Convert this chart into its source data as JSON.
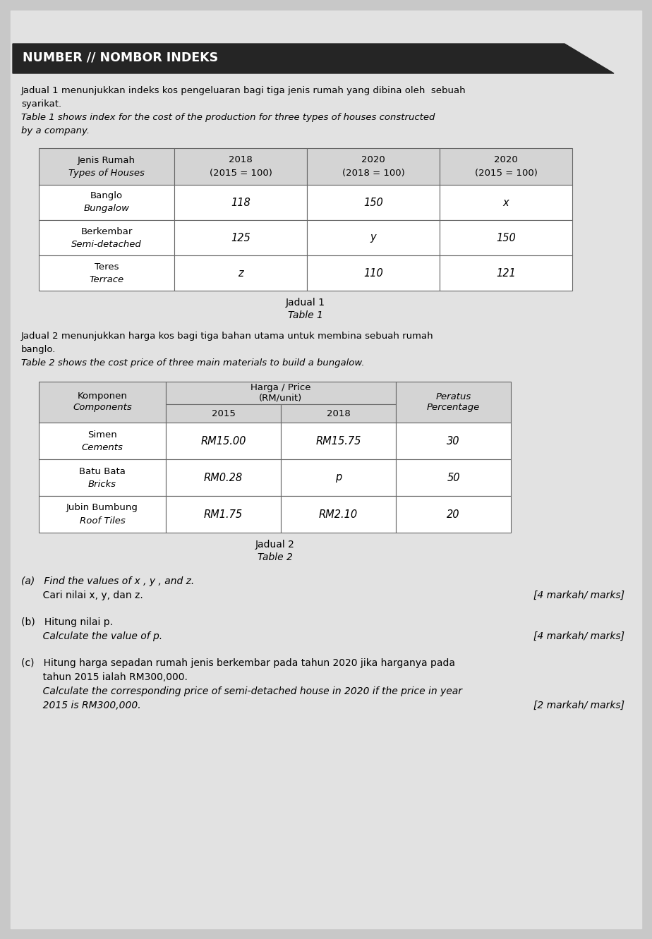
{
  "header_text": "NUMBER // NOMBOR INDEKS",
  "page_bg": "#c8c8c8",
  "content_bg": "#e2e2e2",
  "table_bg": "#d8d8d8",
  "para1_line1": "Jadual 1 menunjukkan indeks kos pengeluaran bagi tiga jenis rumah yang dibina oleh  sebuah",
  "para1_line2": "syarikat.",
  "para1_line3": "Table 1 shows index for the cost of the production for three types of houses constructed",
  "para1_line4": "by a company.",
  "table1_col0_line1": "Jenis Rumah",
  "table1_col0_line2": "Types of Houses",
  "table1_col1_line1": "2018",
  "table1_col1_line2": "(2015 = 100)",
  "table1_col2_line1": "2020",
  "table1_col2_line2": "(2018 = 100)",
  "table1_col3_line1": "2020",
  "table1_col3_line2": "(2015 = 100)",
  "table1_r1c0l1": "Banglo",
  "table1_r1c0l2": "Bungalow",
  "table1_r1c1": "118",
  "table1_r1c2": "150",
  "table1_r1c3": "x",
  "table1_r2c0l1": "Berkembar",
  "table1_r2c0l2": "Semi-detached",
  "table1_r2c1": "125",
  "table1_r2c2": "y",
  "table1_r2c3": "150",
  "table1_r3c0l1": "Teres",
  "table1_r3c0l2": "Terrace",
  "table1_r3c1": "z",
  "table1_r3c2": "110",
  "table1_r3c3": "121",
  "table1_caption1": "Jadual 1",
  "table1_caption2": "Table 1",
  "para2_line1": "Jadual 2 menunjukkan harga kos bagi tiga bahan utama untuk membina sebuah rumah",
  "para2_line2": "banglo.",
  "para2_line3": "Table 2 shows the cost price of three main materials to build a bungalow.",
  "t2h_komponen1": "Komponen",
  "t2h_komponen2": "Components",
  "t2h_harga1": "Harga / Price",
  "t2h_harga2": "(RM/unit)",
  "t2h_2015": "2015",
  "t2h_2018": "2018",
  "t2h_peratus1": "Peratus",
  "t2h_peratus2": "Percentage",
  "t2r1c0l1": "Simen",
  "t2r1c0l2": "Cements",
  "t2r1c1": "RM15.00",
  "t2r1c2": "RM15.75",
  "t2r1c3": "30",
  "t2r2c0l1": "Batu Bata",
  "t2r2c0l2": "Bricks",
  "t2r2c1": "RM0.28",
  "t2r2c2": "p",
  "t2r2c3": "50",
  "t2r3c0l1": "Jubin Bumbung",
  "t2r3c0l2": "Roof Tiles",
  "t2r3c1": "RM1.75",
  "t2r3c2": "RM2.10",
  "t2r3c3": "20",
  "table2_caption1": "Jadual 2",
  "table2_caption2": "Table 2",
  "qa1": "(a)   Find the values of x , y , and z.",
  "qa2": "       Cari nilai x, y, dan z.",
  "qa_marks": "[4 markah/ marks]",
  "qb1": "(b)   Hitung nilai p.",
  "qb2": "       Calculate the value of p.",
  "qb_marks": "[4 markah/ marks]",
  "qc1": "(c)   Hitung harga sepadan rumah jenis berkembar pada tahun 2020 jika harganya pada",
  "qc2": "       tahun 2015 ialah RM300,000.",
  "qc3": "       Calculate the corresponding price of semi-detached house in 2020 if the price in year",
  "qc4": "       2015 is RM300,000.",
  "qc_marks": "[2 markah/ marks]"
}
